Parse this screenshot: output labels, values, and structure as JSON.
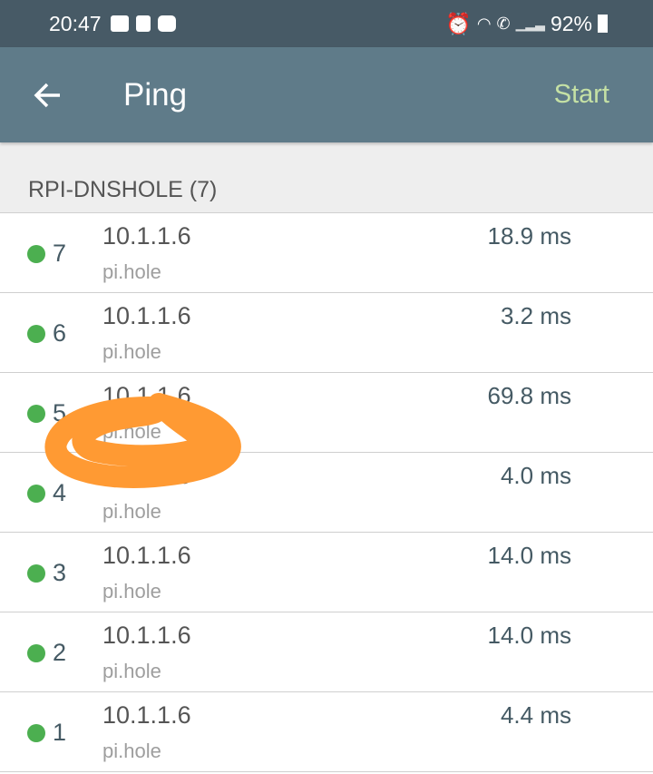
{
  "status_bar": {
    "time": "20:47",
    "battery": "92%"
  },
  "toolbar": {
    "title": "Ping",
    "action": "Start"
  },
  "section": {
    "title": "RPI-DNSHOLE (7)"
  },
  "rows": [
    {
      "num": "7",
      "address": "10.1.1.6",
      "host": "pi.hole",
      "time": "18.9 ms"
    },
    {
      "num": "6",
      "address": "10.1.1.6",
      "host": "pi.hole",
      "time": "3.2 ms"
    },
    {
      "num": "5",
      "address": "10.1.1.6",
      "host": "pi.hole",
      "time": "69.8 ms"
    },
    {
      "num": "4",
      "address": "10.1.1.6",
      "host": "pi.hole",
      "time": "4.0 ms"
    },
    {
      "num": "3",
      "address": "10.1.1.6",
      "host": "pi.hole",
      "time": "14.0 ms"
    },
    {
      "num": "2",
      "address": "10.1.1.6",
      "host": "pi.hole",
      "time": "14.0 ms"
    },
    {
      "num": "1",
      "address": "10.1.1.6",
      "host": "pi.hole",
      "time": "4.4 ms"
    }
  ],
  "colors": {
    "status_ok": "#4caf50",
    "toolbar": "#5f7b89",
    "accent": "#c5e1a5",
    "annotation": "#ff9a33"
  },
  "icons": [
    "gallery-icon",
    "cast-icon",
    "youtube-icon",
    "alarm-icon",
    "wifi-icon",
    "wifi-call-icon",
    "signal-icon",
    "battery-icon",
    "back-arrow-icon"
  ]
}
